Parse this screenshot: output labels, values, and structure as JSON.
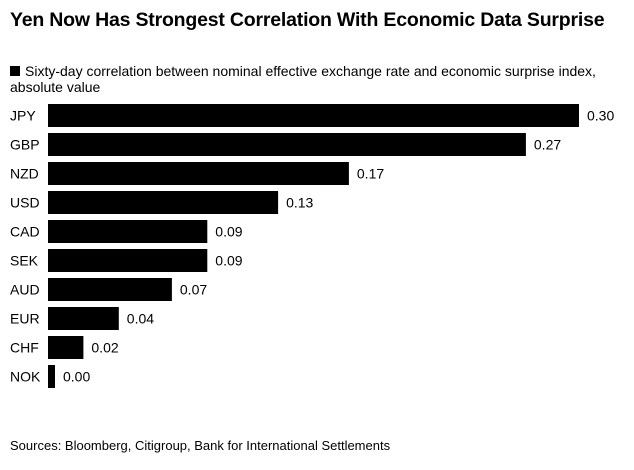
{
  "title": "Yen Now Has Strongest Correlation With Economic Data Surprise",
  "legend": {
    "label": "Sixty-day correlation between nominal effective exchange rate and economic surprise index, absolute value",
    "color": "#000000"
  },
  "source": "Sources: Bloomberg, Citigroup, Bank for International Settlements",
  "chart_data": {
    "type": "bar",
    "orientation": "horizontal",
    "title": "Yen Now Has Strongest Correlation With Economic Data Surprise",
    "categories": [
      "JPY",
      "GBP",
      "NZD",
      "USD",
      "CAD",
      "SEK",
      "AUD",
      "EUR",
      "CHF",
      "NOK"
    ],
    "series": [
      {
        "name": "Sixty-day correlation between nominal effective exchange rate and economic surprise index, absolute value",
        "values": [
          0.3,
          0.27,
          0.17,
          0.13,
          0.09,
          0.09,
          0.07,
          0.04,
          0.02,
          0.0
        ],
        "labels": [
          "0.30",
          "0.27",
          "0.17",
          "0.13",
          "0.09",
          "0.09",
          "0.07",
          "0.04",
          "0.02",
          "0.00"
        ],
        "color": "#000000"
      }
    ],
    "xlim": [
      0,
      0.3
    ],
    "grid": false,
    "legend_position": "top-left"
  }
}
